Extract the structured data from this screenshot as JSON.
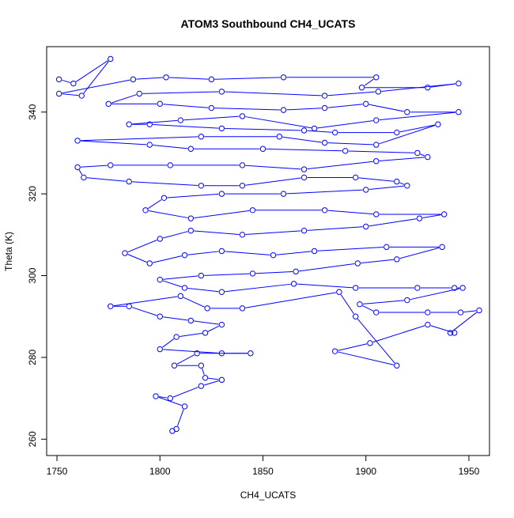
{
  "chart_data": {
    "type": "scatter",
    "title": "ATOM3 Southbound CH4_UCATS",
    "xlabel": "CH4_UCATS",
    "ylabel": "Theta (K)",
    "xlim": [
      1745,
      1960
    ],
    "ylim": [
      256,
      356
    ],
    "x_ticks": [
      1750,
      1800,
      1850,
      1900,
      1950
    ],
    "y_ticks": [
      260,
      280,
      300,
      320,
      340
    ],
    "grid": false,
    "series_color": "#0000ff",
    "marker": "open-circle",
    "lines": true,
    "series": [
      {
        "values": [
          [
            1751,
            348
          ],
          [
            1758,
            347
          ],
          [
            1776,
            353
          ],
          [
            1762,
            344
          ],
          [
            1751,
            344.5
          ],
          [
            1787,
            348
          ],
          [
            1803,
            348.5
          ],
          [
            1825,
            348
          ],
          [
            1860,
            348.5
          ],
          [
            1905,
            348.5
          ],
          [
            1898,
            346
          ],
          [
            1930,
            346
          ],
          [
            1945,
            347
          ],
          [
            1906,
            345
          ],
          [
            1880,
            344
          ],
          [
            1830,
            345
          ],
          [
            1790,
            344.5
          ],
          [
            1775,
            342
          ],
          [
            1800,
            342
          ],
          [
            1825,
            341
          ],
          [
            1860,
            340.5
          ],
          [
            1880,
            341
          ],
          [
            1900,
            342
          ],
          [
            1920,
            340
          ],
          [
            1945,
            340
          ],
          [
            1905,
            338
          ],
          [
            1875,
            336
          ],
          [
            1840,
            339
          ],
          [
            1810,
            338
          ],
          [
            1785,
            337
          ],
          [
            1795,
            337
          ],
          [
            1830,
            336
          ],
          [
            1870,
            335.5
          ],
          [
            1885,
            335
          ],
          [
            1915,
            335
          ],
          [
            1935,
            337
          ],
          [
            1905,
            332
          ],
          [
            1880,
            332.5
          ],
          [
            1858,
            334
          ],
          [
            1820,
            334
          ],
          [
            1760,
            333
          ],
          [
            1795,
            332
          ],
          [
            1815,
            331
          ],
          [
            1850,
            331
          ],
          [
            1890,
            330.5
          ],
          [
            1925,
            330
          ],
          [
            1930,
            329
          ],
          [
            1905,
            328
          ],
          [
            1870,
            326
          ],
          [
            1840,
            327
          ],
          [
            1805,
            327
          ],
          [
            1776,
            327
          ],
          [
            1760,
            326.5
          ],
          [
            1763,
            324
          ],
          [
            1785,
            323
          ],
          [
            1820,
            322
          ],
          [
            1840,
            322
          ],
          [
            1870,
            324
          ],
          [
            1895,
            324
          ],
          [
            1915,
            323
          ],
          [
            1920,
            322
          ],
          [
            1900,
            321
          ],
          [
            1860,
            320
          ],
          [
            1830,
            320
          ],
          [
            1802,
            319
          ],
          [
            1793,
            316
          ],
          [
            1815,
            314
          ],
          [
            1845,
            316
          ],
          [
            1880,
            316
          ],
          [
            1905,
            315
          ],
          [
            1938,
            315
          ],
          [
            1926,
            314
          ],
          [
            1900,
            312
          ],
          [
            1870,
            311
          ],
          [
            1840,
            310
          ],
          [
            1815,
            311
          ],
          [
            1800,
            309
          ],
          [
            1783,
            305.5
          ],
          [
            1795,
            303
          ],
          [
            1812,
            305
          ],
          [
            1830,
            306
          ],
          [
            1855,
            305
          ],
          [
            1875,
            306
          ],
          [
            1910,
            307
          ],
          [
            1937,
            307
          ],
          [
            1915,
            304
          ],
          [
            1896,
            303
          ],
          [
            1866,
            301
          ],
          [
            1845,
            300.5
          ],
          [
            1820,
            300
          ],
          [
            1800,
            299
          ],
          [
            1812,
            297
          ],
          [
            1830,
            296
          ],
          [
            1865,
            298
          ],
          [
            1895,
            297
          ],
          [
            1925,
            297
          ],
          [
            1943,
            297
          ],
          [
            1947,
            297
          ],
          [
            1920,
            294
          ],
          [
            1897,
            293
          ],
          [
            1905,
            291
          ],
          [
            1930,
            291
          ],
          [
            1946,
            291
          ],
          [
            1955,
            291.5
          ],
          [
            1941,
            286
          ],
          [
            1943,
            286
          ],
          [
            1930,
            288
          ],
          [
            1902,
            283.5
          ],
          [
            1885,
            281.5
          ],
          [
            1915,
            278
          ],
          [
            1895,
            290
          ],
          [
            1887,
            296
          ],
          [
            1840,
            292
          ],
          [
            1823,
            292
          ],
          [
            1810,
            295
          ],
          [
            1776,
            292.5
          ],
          [
            1785,
            292.5
          ],
          [
            1800,
            290
          ],
          [
            1815,
            289
          ],
          [
            1830,
            288
          ],
          [
            1822,
            286
          ],
          [
            1808,
            285
          ],
          [
            1800,
            282
          ],
          [
            1830,
            281
          ],
          [
            1844,
            281
          ],
          [
            1818,
            281
          ],
          [
            1807,
            278
          ],
          [
            1820,
            278
          ],
          [
            1822,
            275
          ],
          [
            1830,
            274.5
          ],
          [
            1820,
            273
          ],
          [
            1805,
            270
          ],
          [
            1798,
            270.5
          ],
          [
            1812,
            268
          ],
          [
            1808,
            262.5
          ],
          [
            1806,
            262
          ]
        ]
      }
    ]
  }
}
